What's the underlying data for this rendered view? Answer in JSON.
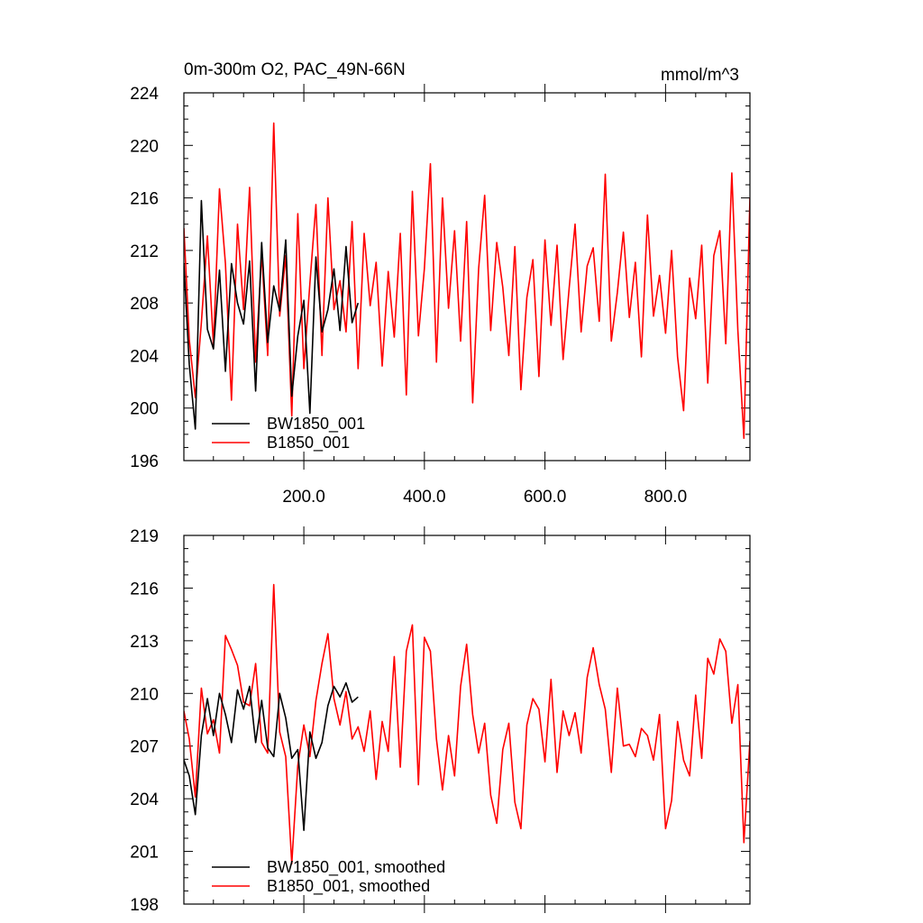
{
  "colors": {
    "BW1850_001": "#000000",
    "B1850_001": "#ff0000"
  },
  "chart_data": [
    {
      "type": "line",
      "title": "0m-300m O2, PAC_49N-66N",
      "units": "mmol/m^3",
      "xlim": [
        1,
        940
      ],
      "ylim": [
        196,
        224
      ],
      "yticks": [
        196,
        200,
        204,
        208,
        212,
        216,
        220,
        224
      ],
      "ytick_labels": [
        "196",
        "200",
        "204",
        "208",
        "212",
        "216",
        "220",
        "224"
      ],
      "xticks": [
        200,
        400,
        600,
        800
      ],
      "xtick_labels": [
        "200.0",
        "400.0",
        "600.0",
        "800.0"
      ],
      "legend": {
        "position": "bottom-left",
        "entries": [
          "BW1850_001",
          "B1850_001"
        ]
      },
      "series": [
        {
          "name": "BW1850_001",
          "color": "#000000",
          "x": [
            1,
            10,
            20,
            30,
            40,
            50,
            60,
            70,
            80,
            90,
            100,
            110,
            120,
            130,
            140,
            150,
            160,
            170,
            180,
            190,
            200,
            210,
            220,
            230,
            240,
            250,
            260,
            270,
            280,
            290
          ],
          "values": [
            211,
            203.3,
            198.4,
            215.8,
            206,
            204.5,
            210.5,
            202.8,
            211,
            208,
            206.4,
            211.2,
            201.3,
            212.6,
            205,
            209.3,
            207.4,
            212.8,
            200.9,
            205.5,
            208.2,
            199.6,
            211.5,
            205.8,
            207.5,
            210.6,
            205.9,
            212.3,
            206.5,
            208
          ]
        },
        {
          "name": "B1850_001",
          "color": "#ff0000",
          "x": [
            1,
            10,
            20,
            30,
            40,
            50,
            60,
            70,
            80,
            90,
            100,
            110,
            120,
            130,
            140,
            150,
            160,
            170,
            180,
            190,
            200,
            210,
            220,
            230,
            240,
            250,
            260,
            270,
            280,
            290,
            300,
            310,
            320,
            330,
            340,
            350,
            360,
            370,
            380,
            390,
            400,
            410,
            420,
            430,
            440,
            450,
            460,
            470,
            480,
            490,
            500,
            510,
            520,
            530,
            540,
            550,
            560,
            570,
            580,
            590,
            600,
            610,
            620,
            630,
            640,
            650,
            660,
            670,
            680,
            690,
            700,
            710,
            720,
            730,
            740,
            750,
            760,
            770,
            780,
            790,
            800,
            810,
            820,
            830,
            840,
            850,
            860,
            870,
            880,
            890,
            900,
            910,
            920,
            930,
            940
          ],
          "values": [
            213.7,
            205.2,
            200.8,
            206.5,
            213.1,
            204.8,
            216.7,
            211,
            200.6,
            214,
            207.5,
            216.8,
            203.5,
            211.8,
            204,
            221.7,
            207,
            211.6,
            199.4,
            214.8,
            203,
            209.5,
            215.5,
            204,
            216,
            207.5,
            209.7,
            205.8,
            214.2,
            203,
            213.3,
            207.8,
            211.1,
            203.2,
            210.4,
            205.4,
            213.3,
            201,
            216.5,
            205.5,
            210.6,
            218.6,
            203.5,
            216,
            207.6,
            213.5,
            205.1,
            214.2,
            200.4,
            210.6,
            216.2,
            205.9,
            212.6,
            209.2,
            204,
            212.3,
            201.4,
            208.4,
            211.3,
            202.4,
            212.8,
            206.3,
            212.4,
            203.7,
            209.1,
            214,
            205.8,
            210.8,
            212.2,
            206.6,
            217.8,
            205.1,
            208.8,
            213.4,
            206.9,
            211.1,
            203.9,
            214.7,
            207,
            210.1,
            205.7,
            212,
            203.9,
            199.8,
            209.9,
            206.8,
            212.4,
            201.9,
            211.6,
            213.5,
            204.9,
            217.9,
            205.9,
            197.7,
            216
          ]
        }
      ]
    },
    {
      "type": "line",
      "title": "",
      "xlim": [
        1,
        940
      ],
      "ylim": [
        198,
        219
      ],
      "yticks": [
        198,
        201,
        204,
        207,
        210,
        213,
        216,
        219
      ],
      "ytick_labels": [
        "198",
        "201",
        "204",
        "207",
        "210",
        "213",
        "216",
        "219"
      ],
      "xticks": [
        200,
        400,
        600,
        800
      ],
      "xtick_labels": [
        "",
        "",
        "",
        ""
      ],
      "legend": {
        "position": "bottom-left",
        "entries": [
          "BW1850_001, smoothed",
          "B1850_001, smoothed"
        ]
      },
      "series": [
        {
          "name": "BW1850_001, smoothed",
          "color": "#000000",
          "x": [
            1,
            10,
            20,
            30,
            40,
            50,
            60,
            70,
            80,
            90,
            100,
            110,
            120,
            130,
            140,
            150,
            160,
            170,
            180,
            190,
            200,
            210,
            220,
            230,
            240,
            250,
            260,
            270,
            280,
            290
          ],
          "values": [
            206.2,
            205.3,
            203.1,
            207.6,
            209.7,
            207.6,
            210,
            208.8,
            207.2,
            210.2,
            209.1,
            210.4,
            207.2,
            209.6,
            206.9,
            206.4,
            210,
            208.6,
            206.3,
            206.8,
            202.2,
            207.8,
            206.3,
            207.2,
            209.3,
            210.4,
            209.8,
            210.6,
            209.5,
            209.8
          ]
        },
        {
          "name": "B1850_001, smoothed",
          "color": "#ff0000",
          "x": [
            1,
            10,
            20,
            30,
            40,
            50,
            60,
            70,
            80,
            90,
            100,
            110,
            120,
            130,
            140,
            150,
            160,
            170,
            180,
            190,
            200,
            210,
            220,
            230,
            240,
            250,
            260,
            270,
            280,
            290,
            300,
            310,
            320,
            330,
            340,
            350,
            360,
            370,
            380,
            390,
            400,
            410,
            420,
            430,
            440,
            450,
            460,
            470,
            480,
            490,
            500,
            510,
            520,
            530,
            540,
            550,
            560,
            570,
            580,
            590,
            600,
            610,
            620,
            630,
            640,
            650,
            660,
            670,
            680,
            690,
            700,
            710,
            720,
            730,
            740,
            750,
            760,
            770,
            780,
            790,
            800,
            810,
            820,
            830,
            840,
            850,
            860,
            870,
            880,
            890,
            900,
            910,
            920,
            930,
            940
          ],
          "values": [
            209,
            207.4,
            204.1,
            210.3,
            207.7,
            208.5,
            206.6,
            213.3,
            212.5,
            211.6,
            209.5,
            209.3,
            211.7,
            207.2,
            206.6,
            216.2,
            207.8,
            206.4,
            200.3,
            205.9,
            208.2,
            206.4,
            209.6,
            211.7,
            213.4,
            209.7,
            208.2,
            210.1,
            207.4,
            208.1,
            206.7,
            209,
            205.1,
            208.4,
            206.7,
            212.1,
            205.8,
            212.4,
            213.9,
            204.8,
            213.2,
            212.4,
            207.4,
            204.5,
            207.6,
            205.3,
            210.4,
            212.8,
            208.8,
            206.6,
            208.3,
            204.2,
            202.6,
            206.8,
            208.3,
            203.8,
            202.3,
            208.2,
            209.7,
            209.1,
            206.1,
            210.8,
            205.5,
            209,
            207.6,
            208.9,
            206.6,
            210.9,
            212.6,
            210.5,
            209.1,
            205.5,
            210.3,
            207,
            207.1,
            206.4,
            208,
            207.6,
            206.2,
            208.8,
            202.3,
            203.9,
            208.4,
            206.2,
            205.3,
            209.9,
            206.3,
            212,
            211.1,
            213.1,
            212.4,
            208.3,
            210.5,
            201.5,
            207.3
          ]
        }
      ]
    }
  ]
}
